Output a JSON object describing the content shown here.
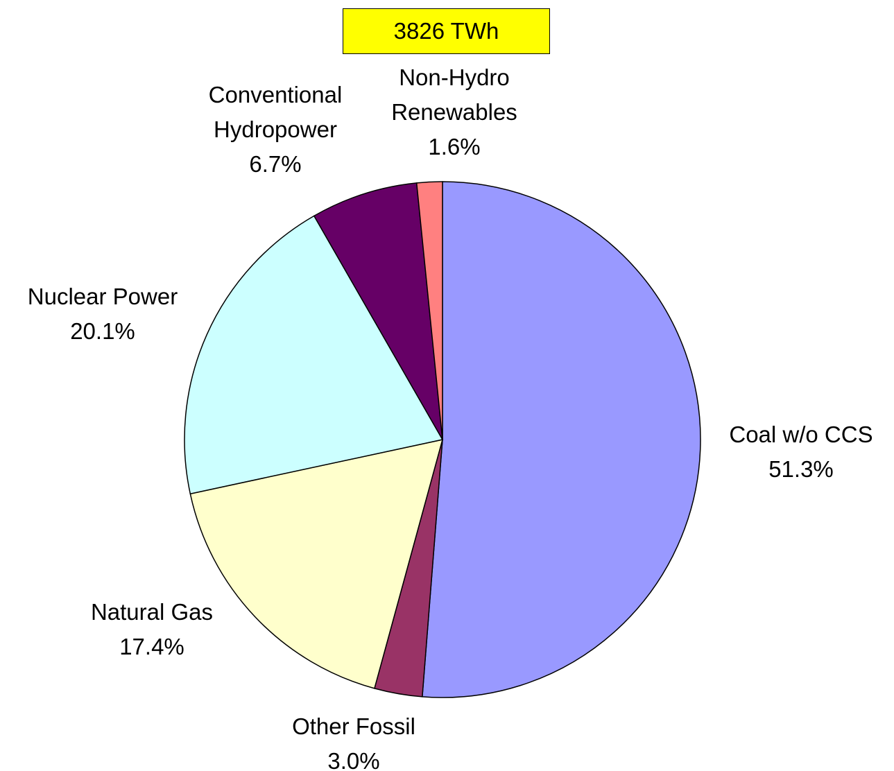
{
  "chart_data": {
    "type": "pie",
    "title": "3826 TWh",
    "categories": [
      "Coal w/o CCS",
      "Other Fossil",
      "Natural Gas",
      "Nuclear Power",
      "Conventional\nHydropower",
      "Non-Hydro\nRenewables"
    ],
    "values": [
      51.3,
      3.0,
      17.4,
      20.1,
      6.7,
      1.6
    ],
    "value_labels": [
      "51.3%",
      "3.0%",
      "17.4%",
      "20.1%",
      "6.7%",
      "1.6%"
    ],
    "colors": [
      "#9999ff",
      "#993366",
      "#ffffcc",
      "#ccffff",
      "#660066",
      "#ff8080"
    ]
  }
}
